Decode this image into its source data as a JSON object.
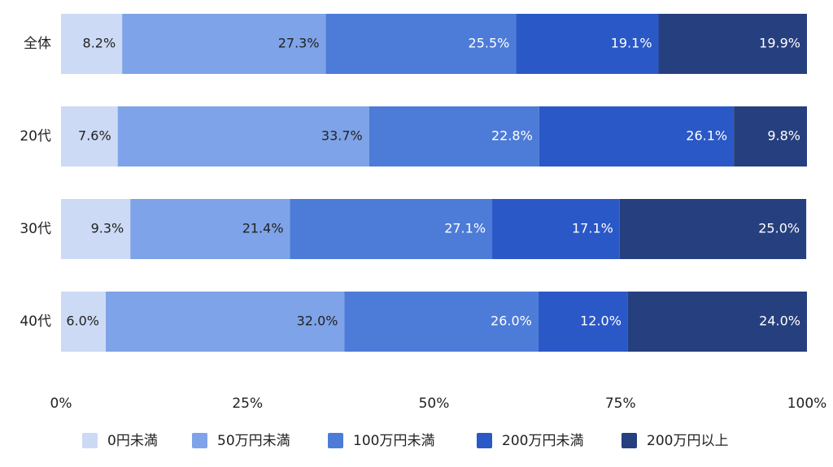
{
  "chart_data": {
    "type": "bar",
    "orientation": "horizontal",
    "stacked": true,
    "percent": true,
    "categories": [
      "全体",
      "20代",
      "30代",
      "40代"
    ],
    "series": [
      {
        "name": "0円未満",
        "color": "#cddaf5",
        "values": [
          8.2,
          7.6,
          9.3,
          6.0
        ],
        "labels": [
          "8.2%",
          "7.6%",
          "9.3%",
          "6.0%"
        ]
      },
      {
        "name": "50万円未満",
        "color": "#7ea3e8",
        "values": [
          27.3,
          33.7,
          21.4,
          32.0
        ],
        "labels": [
          "27.3%",
          "33.7%",
          "21.4%",
          "32.0%"
        ]
      },
      {
        "name": "100万円未満",
        "color": "#4d7bd8",
        "values": [
          25.5,
          22.8,
          27.1,
          26.0
        ],
        "labels": [
          "25.5%",
          "22.8%",
          "27.1%",
          "26.0%"
        ]
      },
      {
        "name": "200万円未満",
        "color": "#2a58c7",
        "values": [
          19.1,
          26.1,
          17.1,
          12.0
        ],
        "labels": [
          "19.1%",
          "26.1%",
          "17.1%",
          "12.0%"
        ]
      },
      {
        "name": "200万円以上",
        "color": "#263f7e",
        "values": [
          19.9,
          9.8,
          25.0,
          24.0
        ],
        "labels": [
          "19.9%",
          "9.8%",
          "25.0%",
          "24.0%"
        ]
      }
    ],
    "label_colors": [
      "#222222",
      "#222222",
      "#ffffff",
      "#ffffff",
      "#ffffff"
    ],
    "xlim": [
      0,
      100
    ],
    "xticks": [
      "0%",
      "25%",
      "50%",
      "75%",
      "100%"
    ],
    "grid": false,
    "legend_position": "bottom"
  }
}
